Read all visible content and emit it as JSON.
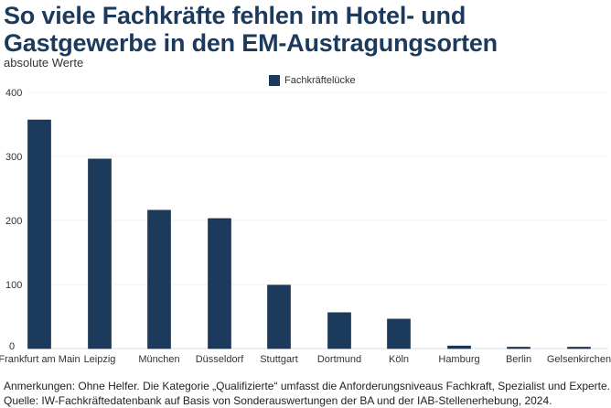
{
  "header": {
    "title_line1": "So viele Fachkräfte fehlen im Hotel- und",
    "title_line2": "Gastgewerbe in den EM-Austragungsorten",
    "subtitle": "absolute Werte"
  },
  "legend": {
    "label": "Fachkräftelücke",
    "color": "#1b3a5c"
  },
  "footer": {
    "note": "Anmerkungen: Ohne Helfer. Die Kategorie „Qualifizierte“ umfasst die Anforderungsniveaus Fachkraft, Spezialist und Experte.",
    "source": "Quelle: IW-Fachkräftedatenbank auf Basis von Sonderauswertungen der BA und der IAB-Stellenerhebung, 2024."
  },
  "chart_data": {
    "type": "bar",
    "title": "So viele Fachkräfte fehlen im Hotel- und Gastgewerbe in den EM-Austragungsorten",
    "subtitle": "absolute Werte",
    "xlabel": "",
    "ylabel": "",
    "ylim": [
      0,
      400
    ],
    "yticks": [
      0,
      100,
      200,
      300,
      400
    ],
    "grid": true,
    "legend_position": "top-center",
    "categories": [
      "Frankfurt am Main",
      "Leipzig",
      "München",
      "Düsseldorf",
      "Stuttgart",
      "Dortmund",
      "Köln",
      "Hamburg",
      "Berlin",
      "Gelsenkirchen"
    ],
    "series": [
      {
        "name": "Fachkräftelücke",
        "color": "#1b3a5c",
        "values": [
          357,
          296,
          216,
          203,
          99,
          56,
          46,
          4,
          1,
          1
        ]
      }
    ]
  }
}
